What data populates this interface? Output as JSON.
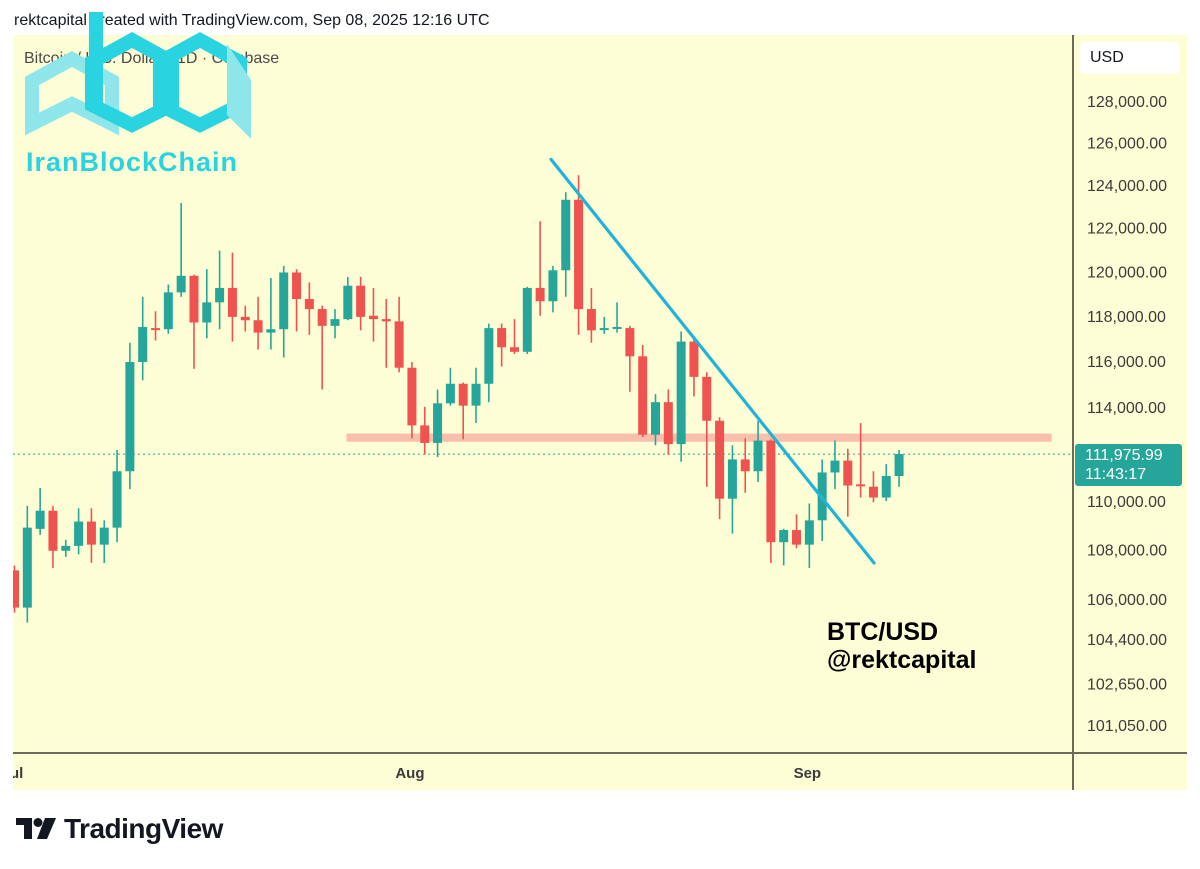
{
  "header": {
    "created_text": "rektcapital created with TradingView.com, Sep 08, 2025 12:16 UTC"
  },
  "symbol_title": "Bitcoin / U.S. Dollar · 1D · Coinbase",
  "currency_button": "USD",
  "watermark_logo": {
    "text": "IranBlockChain"
  },
  "annotation": {
    "line1": "BTC/USD",
    "line2": "@rektcapital"
  },
  "footer": {
    "brand": "TradingView"
  },
  "last_price": {
    "price": "111,975.99",
    "countdown": "11:43:17"
  },
  "colors": {
    "up": "#26a69a",
    "down": "#ef5350",
    "trendline": "#1fb3d6",
    "zone": "#f7b4a4",
    "background": "#fefed6"
  },
  "chart_data": {
    "type": "candlestick",
    "title": "BTC/USD daily",
    "scale": "log",
    "ylim": [
      100500,
      130500
    ],
    "y_ticks": [
      "128,000.00",
      "126,000.00",
      "124,000.00",
      "122,000.00",
      "120,000.00",
      "118,000.00",
      "116,000.00",
      "114,000.00",
      "110,000.00",
      "108,000.00",
      "106,000.00",
      "104,400.00",
      "102,650.00",
      "101,050.00"
    ],
    "y_tick_values": [
      128000,
      126000,
      124000,
      122000,
      120000,
      118000,
      116000,
      114000,
      110000,
      108000,
      106000,
      104400,
      102650,
      101050
    ],
    "x_ticks": [
      {
        "label": "Jul",
        "index": 0
      },
      {
        "label": "Aug",
        "index": 31
      },
      {
        "label": "Sep",
        "index": 62
      }
    ],
    "ohlc_fields": [
      "open",
      "high",
      "low",
      "close"
    ],
    "ohlc": [
      [
        107150,
        107350,
        105450,
        105650
      ],
      [
        105650,
        109800,
        105050,
        108900
      ],
      [
        108850,
        110550,
        108600,
        109600
      ],
      [
        109600,
        109800,
        107250,
        107950
      ],
      [
        107950,
        108400,
        107700,
        108150
      ],
      [
        108150,
        109700,
        107800,
        109150
      ],
      [
        109150,
        109700,
        107450,
        108200
      ],
      [
        108200,
        109200,
        107450,
        108900
      ],
      [
        108900,
        112150,
        108300,
        111250
      ],
      [
        111250,
        116800,
        110500,
        115950
      ],
      [
        115950,
        118850,
        115150,
        117500
      ],
      [
        117450,
        118200,
        116900,
        117400
      ],
      [
        117400,
        119400,
        117200,
        119050
      ],
      [
        119050,
        123150,
        118850,
        119800
      ],
      [
        119800,
        119850,
        115650,
        117700
      ],
      [
        117700,
        120100,
        117000,
        118600
      ],
      [
        118600,
        120950,
        117400,
        119250
      ],
      [
        119250,
        120850,
        116850,
        117950
      ],
      [
        117950,
        118450,
        117300,
        117800
      ],
      [
        117800,
        118850,
        116500,
        117250
      ],
      [
        117250,
        119700,
        116500,
        117400
      ],
      [
        117400,
        120250,
        116150,
        119950
      ],
      [
        119950,
        120100,
        117300,
        118750
      ],
      [
        118750,
        119500,
        117150,
        118300
      ],
      [
        118300,
        118450,
        114750,
        117550
      ],
      [
        117550,
        118300,
        117000,
        117850
      ],
      [
        117850,
        119750,
        117800,
        119350
      ],
      [
        119350,
        119750,
        117350,
        117950
      ],
      [
        118000,
        119250,
        116850,
        117850
      ],
      [
        117850,
        118750,
        115700,
        117750
      ],
      [
        117750,
        118850,
        115500,
        115700
      ],
      [
        115700,
        115950,
        112650,
        113200
      ],
      [
        113200,
        114000,
        111950,
        112450
      ],
      [
        112450,
        114750,
        111850,
        114150
      ],
      [
        114150,
        115700,
        114050,
        115000
      ],
      [
        115000,
        115050,
        112600,
        114050
      ],
      [
        114050,
        115700,
        113300,
        115000
      ],
      [
        115000,
        117650,
        114200,
        117450
      ],
      [
        117450,
        117650,
        115750,
        116600
      ],
      [
        116600,
        117850,
        116300,
        116400
      ],
      [
        116400,
        119300,
        116300,
        119250
      ],
      [
        119250,
        122300,
        118000,
        118650
      ],
      [
        118650,
        120250,
        118150,
        120050
      ],
      [
        120050,
        123650,
        118850,
        123300
      ],
      [
        123300,
        124450,
        117150,
        118300
      ],
      [
        118300,
        119250,
        116800,
        117350
      ],
      [
        117400,
        117950,
        117200,
        117450
      ],
      [
        117450,
        118600,
        117250,
        117500
      ],
      [
        117450,
        117550,
        114650,
        116200
      ],
      [
        116200,
        116700,
        112700,
        112800
      ],
      [
        112800,
        114550,
        112350,
        114200
      ],
      [
        114200,
        114750,
        111950,
        112400
      ],
      [
        112400,
        117300,
        111650,
        116850
      ],
      [
        116850,
        117000,
        114450,
        115300
      ],
      [
        115300,
        115500,
        110600,
        113400
      ],
      [
        113400,
        113550,
        109250,
        110100
      ],
      [
        110100,
        112350,
        108650,
        111750
      ],
      [
        111750,
        112650,
        110350,
        111250
      ],
      [
        111250,
        113400,
        110800,
        112550
      ],
      [
        112550,
        112600,
        107450,
        108300
      ],
      [
        108300,
        108850,
        107350,
        108800
      ],
      [
        108800,
        109450,
        108050,
        108200
      ],
      [
        108200,
        109900,
        107250,
        109200
      ],
      [
        109200,
        111750,
        108350,
        111200
      ],
      [
        111200,
        112550,
        110500,
        111700
      ],
      [
        111700,
        112200,
        109350,
        110650
      ],
      [
        110700,
        113300,
        110150,
        110650
      ],
      [
        110600,
        111250,
        109950,
        110150
      ],
      [
        110150,
        111550,
        110000,
        111050
      ],
      [
        111050,
        112150,
        110600,
        111976
      ]
    ],
    "last_price": 111975.99,
    "trendline": {
      "from": {
        "index": 41.85,
        "price": 125200
      },
      "to": {
        "index": 67.05,
        "price": 107450
      }
    },
    "horizontal_zone": {
      "from_index": 25.9,
      "to_index": 80.9,
      "price_low": 112500,
      "price_high": 112850
    }
  }
}
